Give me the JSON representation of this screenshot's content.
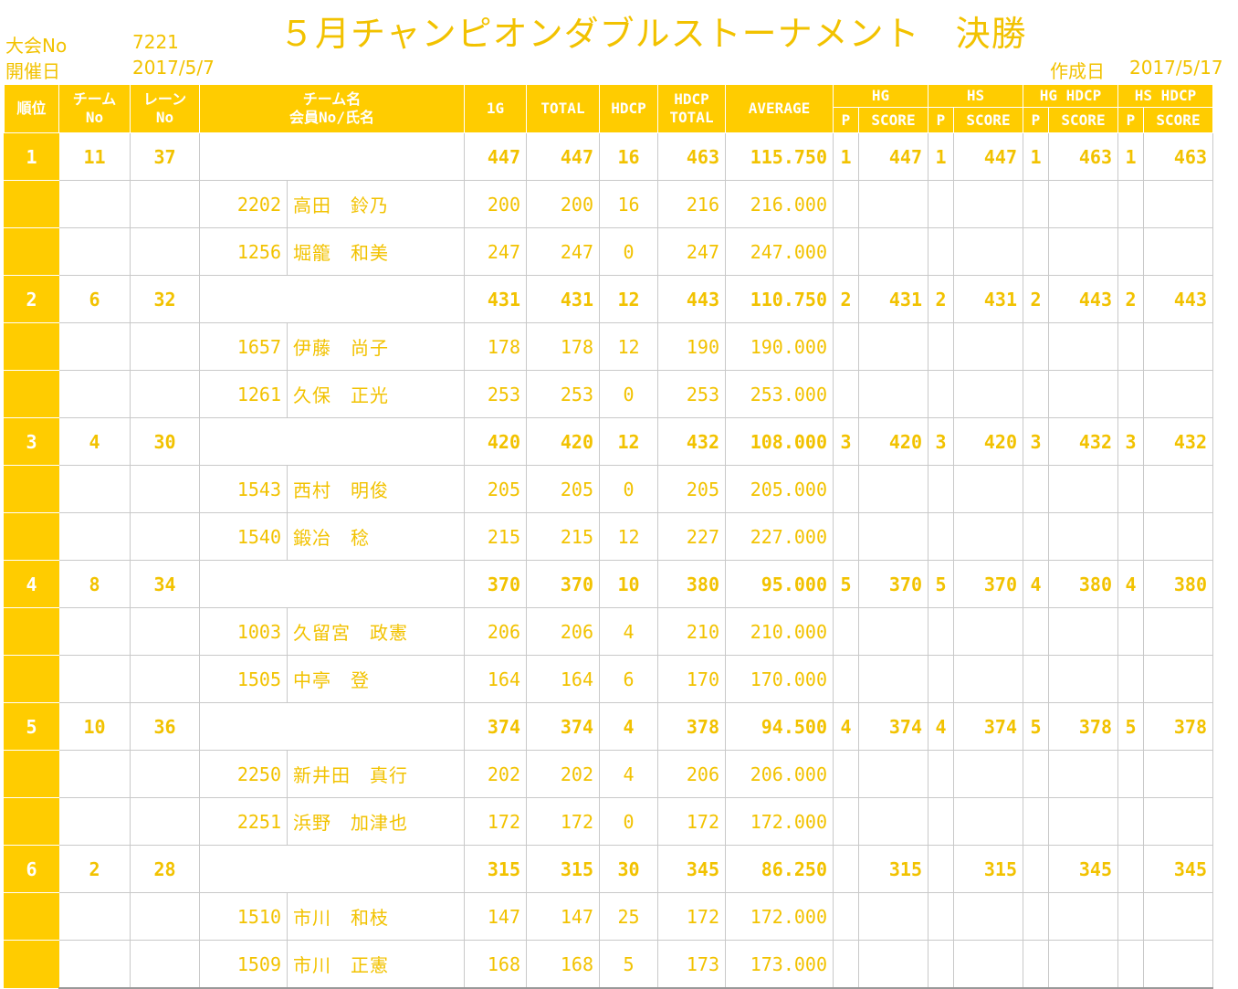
{
  "header": {
    "tournament_no_label": "大会No",
    "tournament_no": "7221",
    "date_label": "開催日",
    "date": "2017/5/7",
    "title": "５月チャンピオンダブルストーナメント　決勝",
    "created_label": "作成日",
    "created_date": "2017/5/17"
  },
  "columns": {
    "rank": "順位",
    "team_no": [
      "チーム",
      "No"
    ],
    "lane_no": [
      "レーン",
      "No"
    ],
    "team_name": [
      "チーム名",
      "会員No/氏名"
    ],
    "g1": "1G",
    "total": "TOTAL",
    "hdcp": "HDCP",
    "hdcp_total": [
      "HDCP",
      "TOTAL"
    ],
    "average": "AVERAGE",
    "hg": "HG",
    "hs": "HS",
    "hg_hdcp": "HG HDCP",
    "hs_hdcp": "HS HDCP",
    "p": "P",
    "score": "SCORE"
  },
  "teams": [
    {
      "rank": "1",
      "team_no": "11",
      "lane": "37",
      "g1": "447",
      "total": "447",
      "hdcp": "16",
      "hdcp_total": "463",
      "avg": "115.750",
      "hg_p": "1",
      "hg": "447",
      "hs_p": "1",
      "hs": "447",
      "hgh_p": "1",
      "hgh": "463",
      "hsh_p": "1",
      "hsh": "463",
      "members": [
        {
          "no": "2202",
          "name": "高田　鈴乃",
          "g1": "200",
          "total": "200",
          "hdcp": "16",
          "hdcp_total": "216",
          "avg": "216.000"
        },
        {
          "no": "1256",
          "name": "堀籠　和美",
          "g1": "247",
          "total": "247",
          "hdcp": "0",
          "hdcp_total": "247",
          "avg": "247.000"
        }
      ]
    },
    {
      "rank": "2",
      "team_no": "6",
      "lane": "32",
      "g1": "431",
      "total": "431",
      "hdcp": "12",
      "hdcp_total": "443",
      "avg": "110.750",
      "hg_p": "2",
      "hg": "431",
      "hs_p": "2",
      "hs": "431",
      "hgh_p": "2",
      "hgh": "443",
      "hsh_p": "2",
      "hsh": "443",
      "members": [
        {
          "no": "1657",
          "name": "伊藤　尚子",
          "g1": "178",
          "total": "178",
          "hdcp": "12",
          "hdcp_total": "190",
          "avg": "190.000"
        },
        {
          "no": "1261",
          "name": "久保　正光",
          "g1": "253",
          "total": "253",
          "hdcp": "0",
          "hdcp_total": "253",
          "avg": "253.000"
        }
      ]
    },
    {
      "rank": "3",
      "team_no": "4",
      "lane": "30",
      "g1": "420",
      "total": "420",
      "hdcp": "12",
      "hdcp_total": "432",
      "avg": "108.000",
      "hg_p": "3",
      "hg": "420",
      "hs_p": "3",
      "hs": "420",
      "hgh_p": "3",
      "hgh": "432",
      "hsh_p": "3",
      "hsh": "432",
      "members": [
        {
          "no": "1543",
          "name": "西村　明俊",
          "g1": "205",
          "total": "205",
          "hdcp": "0",
          "hdcp_total": "205",
          "avg": "205.000"
        },
        {
          "no": "1540",
          "name": "鍛冶　稔",
          "g1": "215",
          "total": "215",
          "hdcp": "12",
          "hdcp_total": "227",
          "avg": "227.000"
        }
      ]
    },
    {
      "rank": "4",
      "team_no": "8",
      "lane": "34",
      "g1": "370",
      "total": "370",
      "hdcp": "10",
      "hdcp_total": "380",
      "avg": "95.000",
      "hg_p": "5",
      "hg": "370",
      "hs_p": "5",
      "hs": "370",
      "hgh_p": "4",
      "hgh": "380",
      "hsh_p": "4",
      "hsh": "380",
      "members": [
        {
          "no": "1003",
          "name": "久留宮　政憲",
          "g1": "206",
          "total": "206",
          "hdcp": "4",
          "hdcp_total": "210",
          "avg": "210.000"
        },
        {
          "no": "1505",
          "name": "中亭　登",
          "g1": "164",
          "total": "164",
          "hdcp": "6",
          "hdcp_total": "170",
          "avg": "170.000"
        }
      ]
    },
    {
      "rank": "5",
      "team_no": "10",
      "lane": "36",
      "g1": "374",
      "total": "374",
      "hdcp": "4",
      "hdcp_total": "378",
      "avg": "94.500",
      "hg_p": "4",
      "hg": "374",
      "hs_p": "4",
      "hs": "374",
      "hgh_p": "5",
      "hgh": "378",
      "hsh_p": "5",
      "hsh": "378",
      "members": [
        {
          "no": "2250",
          "name": "新井田　真行",
          "g1": "202",
          "total": "202",
          "hdcp": "4",
          "hdcp_total": "206",
          "avg": "206.000"
        },
        {
          "no": "2251",
          "name": "浜野　加津也",
          "g1": "172",
          "total": "172",
          "hdcp": "0",
          "hdcp_total": "172",
          "avg": "172.000"
        }
      ]
    },
    {
      "rank": "6",
      "team_no": "2",
      "lane": "28",
      "g1": "315",
      "total": "315",
      "hdcp": "30",
      "hdcp_total": "345",
      "avg": "86.250",
      "hg_p": "",
      "hg": "315",
      "hs_p": "",
      "hs": "315",
      "hgh_p": "",
      "hgh": "345",
      "hsh_p": "",
      "hsh": "345",
      "members": [
        {
          "no": "1510",
          "name": "市川　和枝",
          "g1": "147",
          "total": "147",
          "hdcp": "25",
          "hdcp_total": "172",
          "avg": "172.000"
        },
        {
          "no": "1509",
          "name": "市川　正憲",
          "g1": "168",
          "total": "168",
          "hdcp": "5",
          "hdcp_total": "173",
          "avg": "173.000"
        }
      ]
    }
  ]
}
